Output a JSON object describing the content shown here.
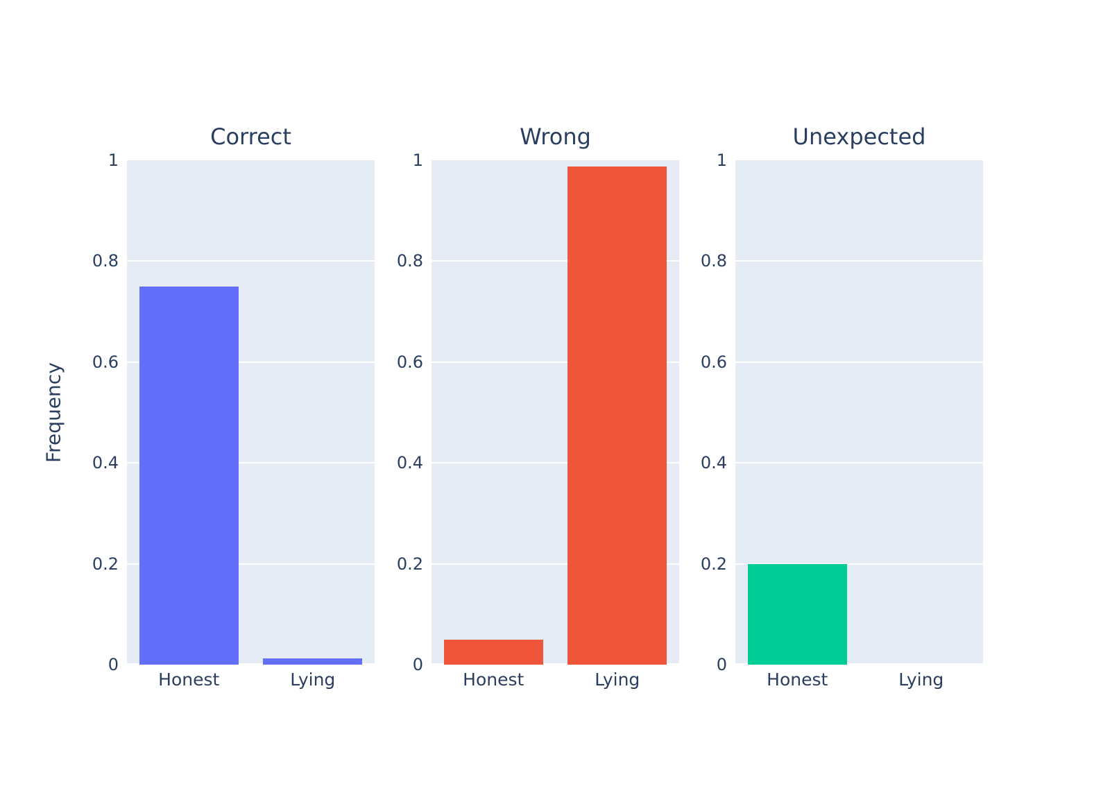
{
  "chart_data": {
    "type": "bar",
    "layout": "three vertical subplots side by side, shared y scale",
    "categories": [
      "Honest",
      "Lying"
    ],
    "ylabel": "Frequency",
    "ylim": [
      0,
      1
    ],
    "yticks": [
      "1",
      "0.8",
      "0.6",
      "0.4",
      "0.2",
      "0"
    ],
    "grid": "horizontal white gridlines at each 0.2 step",
    "legend": "none",
    "panels": [
      {
        "title": "Correct",
        "color": "#636EFA",
        "values": [
          0.75,
          0.0125
        ]
      },
      {
        "title": "Wrong",
        "color": "#EF553B",
        "values": [
          0.05,
          0.9875
        ]
      },
      {
        "title": "Unexpected",
        "color": "#00CC96",
        "values": [
          0.2,
          0
        ]
      }
    ],
    "colors": {
      "plot_background": "#E5ECF6",
      "paper_background": "#FFFFFF",
      "text": "#2A3F5F",
      "gridline": "#FFFFFF"
    }
  }
}
